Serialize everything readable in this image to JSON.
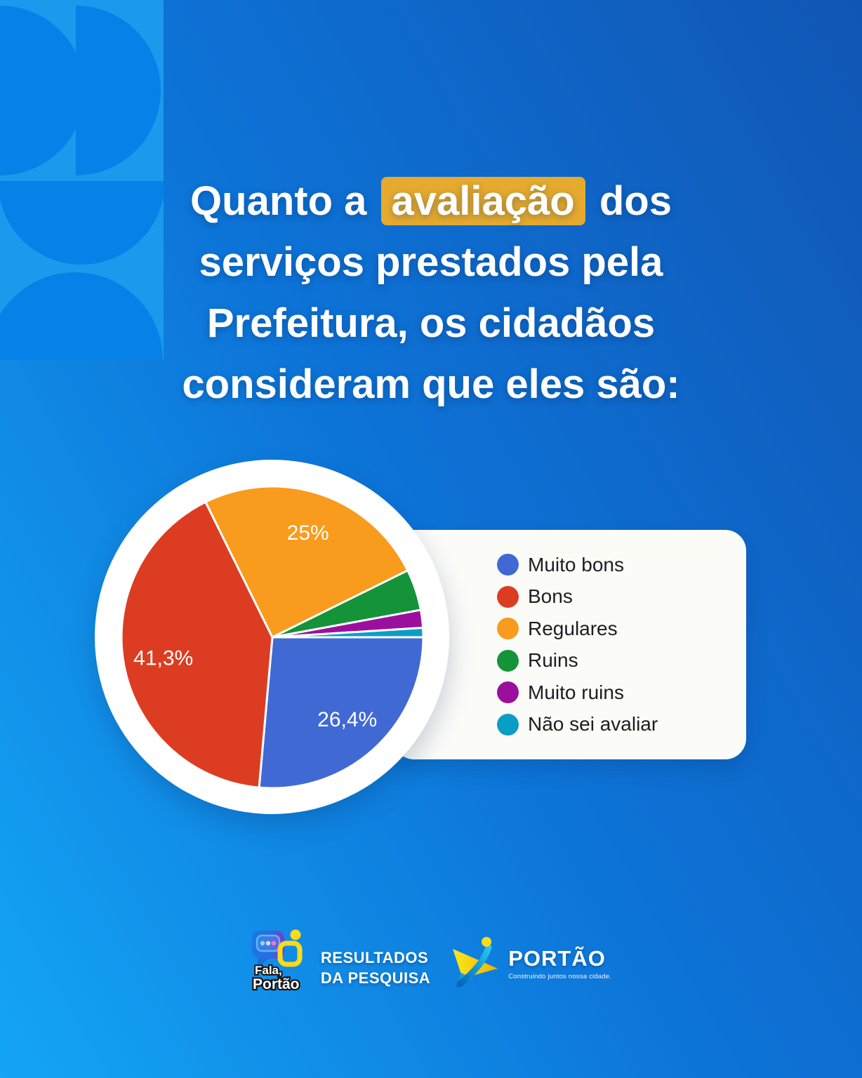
{
  "colors": {
    "background_bright": "#14A5F5",
    "background_mid": "#0D74D8",
    "background_deep": "#1156B4",
    "card": "#FBFBF8",
    "title_highlight": "#E5AA2E",
    "title_text": "#FFFFFF",
    "legend_text": "#1D1E20",
    "pie_label": "#FFFFFF",
    "deco_tile": "#1B99EC",
    "deco_shape": "#0681E8"
  },
  "title": {
    "line1_prefix": "Quanto a ",
    "line1_highlight": "avaliação",
    "line1_suffix": " dos",
    "line2": "serviços prestados pela",
    "line3": "Prefeitura, os cidadãos",
    "line4": "consideram que eles são:"
  },
  "chart_data": {
    "type": "pie",
    "title": "",
    "legend_position": "right",
    "start_angle_deg": 90,
    "direction": "clockwise",
    "slices": [
      {
        "label": "Muito bons",
        "value": 26.4,
        "display_label": "26,4%",
        "color": "#4069D4"
      },
      {
        "label": "Bons",
        "value": 41.3,
        "display_label": "41,3%",
        "color": "#DC3D22"
      },
      {
        "label": "Regulares",
        "value": 25.0,
        "display_label": "25%",
        "color": "#F99B1C"
      },
      {
        "label": "Ruins",
        "value": 4.4,
        "display_label": "",
        "color": "#149339"
      },
      {
        "label": "Muito ruins",
        "value": 1.9,
        "display_label": "",
        "color": "#9B0F9E"
      },
      {
        "label": "Não sei avaliar",
        "value": 1.0,
        "display_label": "",
        "color": "#0A9EC6"
      }
    ]
  },
  "footer": {
    "fala_line1": "Fala,",
    "fala_line2": "Portão",
    "results_line1": "RESULTADOS",
    "results_line2": "DA PESQUISA",
    "portao_name": "PORTÃO",
    "portao_tagline": "Construindo juntos nossa cidade."
  }
}
